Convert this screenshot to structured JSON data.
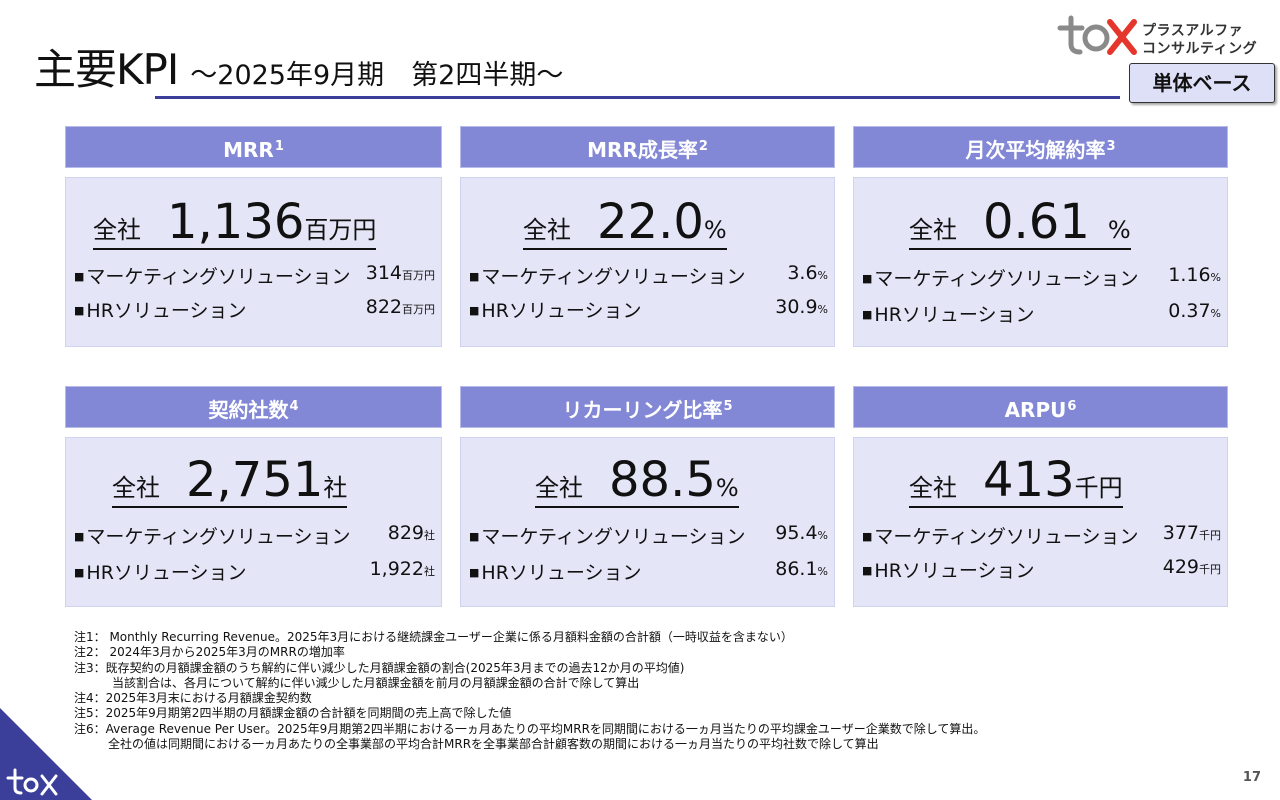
{
  "title": {
    "main": "主要KPI",
    "sub": "～2025年9月期　第2四半期～"
  },
  "logo": {
    "line1": "プラスアルファ",
    "line2": "コンサルティング"
  },
  "badge": "単体ベース",
  "colors": {
    "header": "#8288d6",
    "card": "#e4e6f8",
    "rule": "#3b3f9a",
    "accent": "#e5362c"
  },
  "cards": [
    {
      "title": "MRR",
      "note": "1",
      "total_label": "全社",
      "total_value": "1,136",
      "total_unit": "百万円",
      "rows": [
        {
          "label": "マーケティングソリューション",
          "value": "314",
          "unit": "百万円"
        },
        {
          "label": "HRソリューション",
          "value": "822",
          "unit": "百万円"
        }
      ]
    },
    {
      "title": "MRR成長率",
      "note": "2",
      "total_label": "全社",
      "total_value": "22.0",
      "total_unit": "%",
      "rows": [
        {
          "label": "マーケティングソリューション",
          "value": "3.6",
          "unit": "%"
        },
        {
          "label": "HRソリューション",
          "value": "30.9",
          "unit": "%"
        }
      ]
    },
    {
      "title": "月次平均解約率",
      "note": "3",
      "total_label": "全社",
      "total_value": "0.61",
      "total_unit": "%",
      "rows": [
        {
          "label": "マーケティングソリューション",
          "value": "1.16",
          "unit": "%"
        },
        {
          "label": "HRソリューション",
          "value": "0.37",
          "unit": "%"
        }
      ]
    },
    {
      "title": "契約社数",
      "note": "4",
      "total_label": "全社",
      "total_value": "2,751",
      "total_unit": "社",
      "rows": [
        {
          "label": "マーケティングソリューション",
          "value": "829",
          "unit": "社"
        },
        {
          "label": "HRソリューション",
          "value": "1,922",
          "unit": "社"
        }
      ]
    },
    {
      "title": "リカーリング比率",
      "note": "5",
      "total_label": "全社",
      "total_value": "88.5",
      "total_unit": "%",
      "rows": [
        {
          "label": "マーケティングソリューション",
          "value": "95.4",
          "unit": "%"
        },
        {
          "label": "HRソリューション",
          "value": "86.1",
          "unit": "%"
        }
      ]
    },
    {
      "title": "ARPU",
      "note": "6",
      "total_label": "全社",
      "total_value": "413",
      "total_unit": "千円",
      "rows": [
        {
          "label": "マーケティングソリューション",
          "value": "377",
          "unit": "千円"
        },
        {
          "label": "HRソリューション",
          "value": "429",
          "unit": "千円"
        }
      ]
    }
  ],
  "notes": [
    "注1： Monthly Recurring Revenue。2025年3月における継続課金ユーザー企業に係る月額料金額の合計額（一時収益を含まない）",
    "注2： 2024年3月から2025年3月のMRRの増加率",
    "注3：既存契約の月額課金額のうち解約に伴い減少した月額課金額の割合(2025年3月までの過去12か月の平均値)",
    "当該割合は、各月について解約に伴い減少した月額課金額を前月の月額課金額の合計で除して算出",
    "注4：2025年3月末における月額課金契約数",
    "注5：2025年9月期第2四半期の月額課金額の合計額を同期間の売上高で除した値",
    "注6：Average Revenue Per User。2025年9月期第2四半期における一ヵ月あたりの平均MRRを同期間における一ヵ月当たりの平均課金ユーザー企業数で除して算出。",
    "全社の値は同期間における一ヵ月あたりの全事業部の平均合計MRRを全事業部合計顧客数の期間における一ヵ月当たりの平均社数で除して算出"
  ],
  "page_number": "17"
}
